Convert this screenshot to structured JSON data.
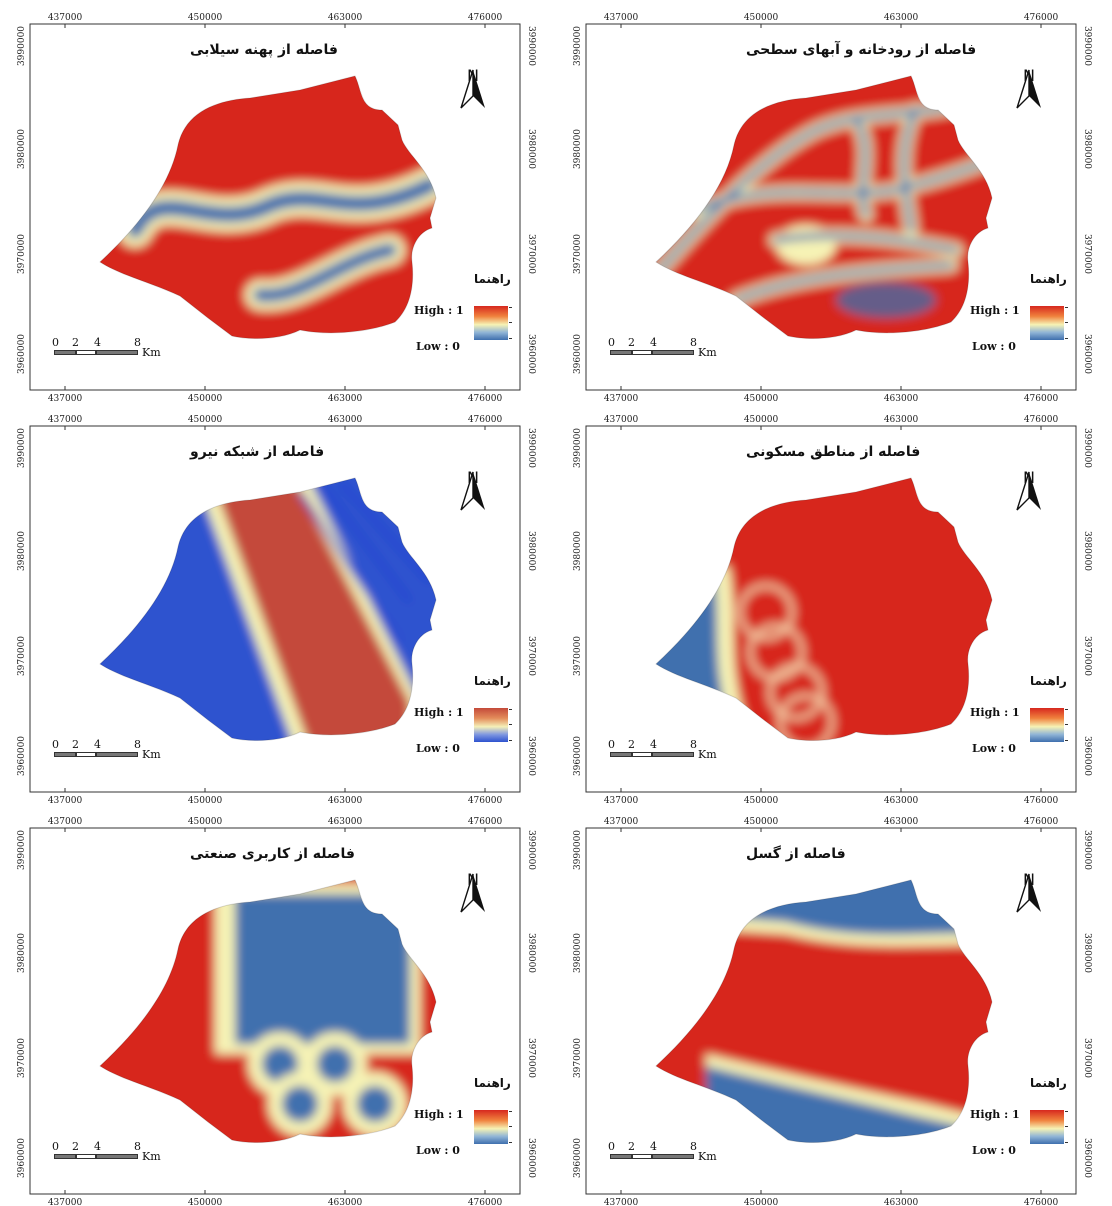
{
  "panels": [
    {
      "id": "floodplain",
      "title": "فاصله از پهنه سیلابی",
      "ramp": "rdylbu",
      "x_ticks": [
        "437000",
        "450000",
        "463000",
        "476000"
      ],
      "y_ticks": [
        "3990000",
        "3980000",
        "3970000",
        "3960000"
      ]
    },
    {
      "id": "rivers",
      "title": "فاصله از رودخانه و آبهای سطحی",
      "ramp": "rdylbu",
      "x_ticks": [
        "437000",
        "450000",
        "463000",
        "476000"
      ],
      "y_ticks": [
        "3990000",
        "3980000",
        "3970000",
        "3960000"
      ]
    },
    {
      "id": "power",
      "title": "فاصله از شبکه نیرو",
      "ramp": "power",
      "x_ticks": [
        "437000",
        "450000",
        "463000",
        "476000"
      ],
      "y_ticks": [
        "3990000",
        "3980000",
        "3970000",
        "3960000"
      ]
    },
    {
      "id": "residential",
      "title": "فاصله از مناطق مسکونی",
      "ramp": "rdylbu",
      "x_ticks": [
        "437000",
        "450000",
        "463000",
        "476000"
      ],
      "y_ticks": [
        "3990000",
        "3980000",
        "3970000",
        "3960000"
      ]
    },
    {
      "id": "industrial",
      "title": "فاصله از کاربری صنعتی",
      "ramp": "rdylbu",
      "x_ticks": [
        "437000",
        "450000",
        "463000",
        "476000"
      ],
      "y_ticks": [
        "3990000",
        "3980000",
        "3970000",
        "3960000"
      ]
    },
    {
      "id": "fault",
      "title": "فاصله از گسل",
      "ramp": "rdylbu",
      "x_ticks": [
        "437000",
        "450000",
        "463000",
        "476000"
      ],
      "y_ticks": [
        "3990000",
        "3980000",
        "3970000",
        "3960000"
      ]
    }
  ],
  "legend": {
    "title": "راهنما",
    "high": "High : 1",
    "low": "Low : 0"
  },
  "north_arrow": {
    "label": "N",
    "icon": "north-arrow-icon"
  },
  "scale_bar": {
    "ticks": [
      "0",
      "2",
      "4",
      "8"
    ],
    "unit": "Km"
  },
  "colors": {
    "high": "#d7281f",
    "mid": "#f6f3b5",
    "low": "#3f6fae",
    "power_high": "#c44a3a",
    "power_low": "#2d52cf"
  }
}
